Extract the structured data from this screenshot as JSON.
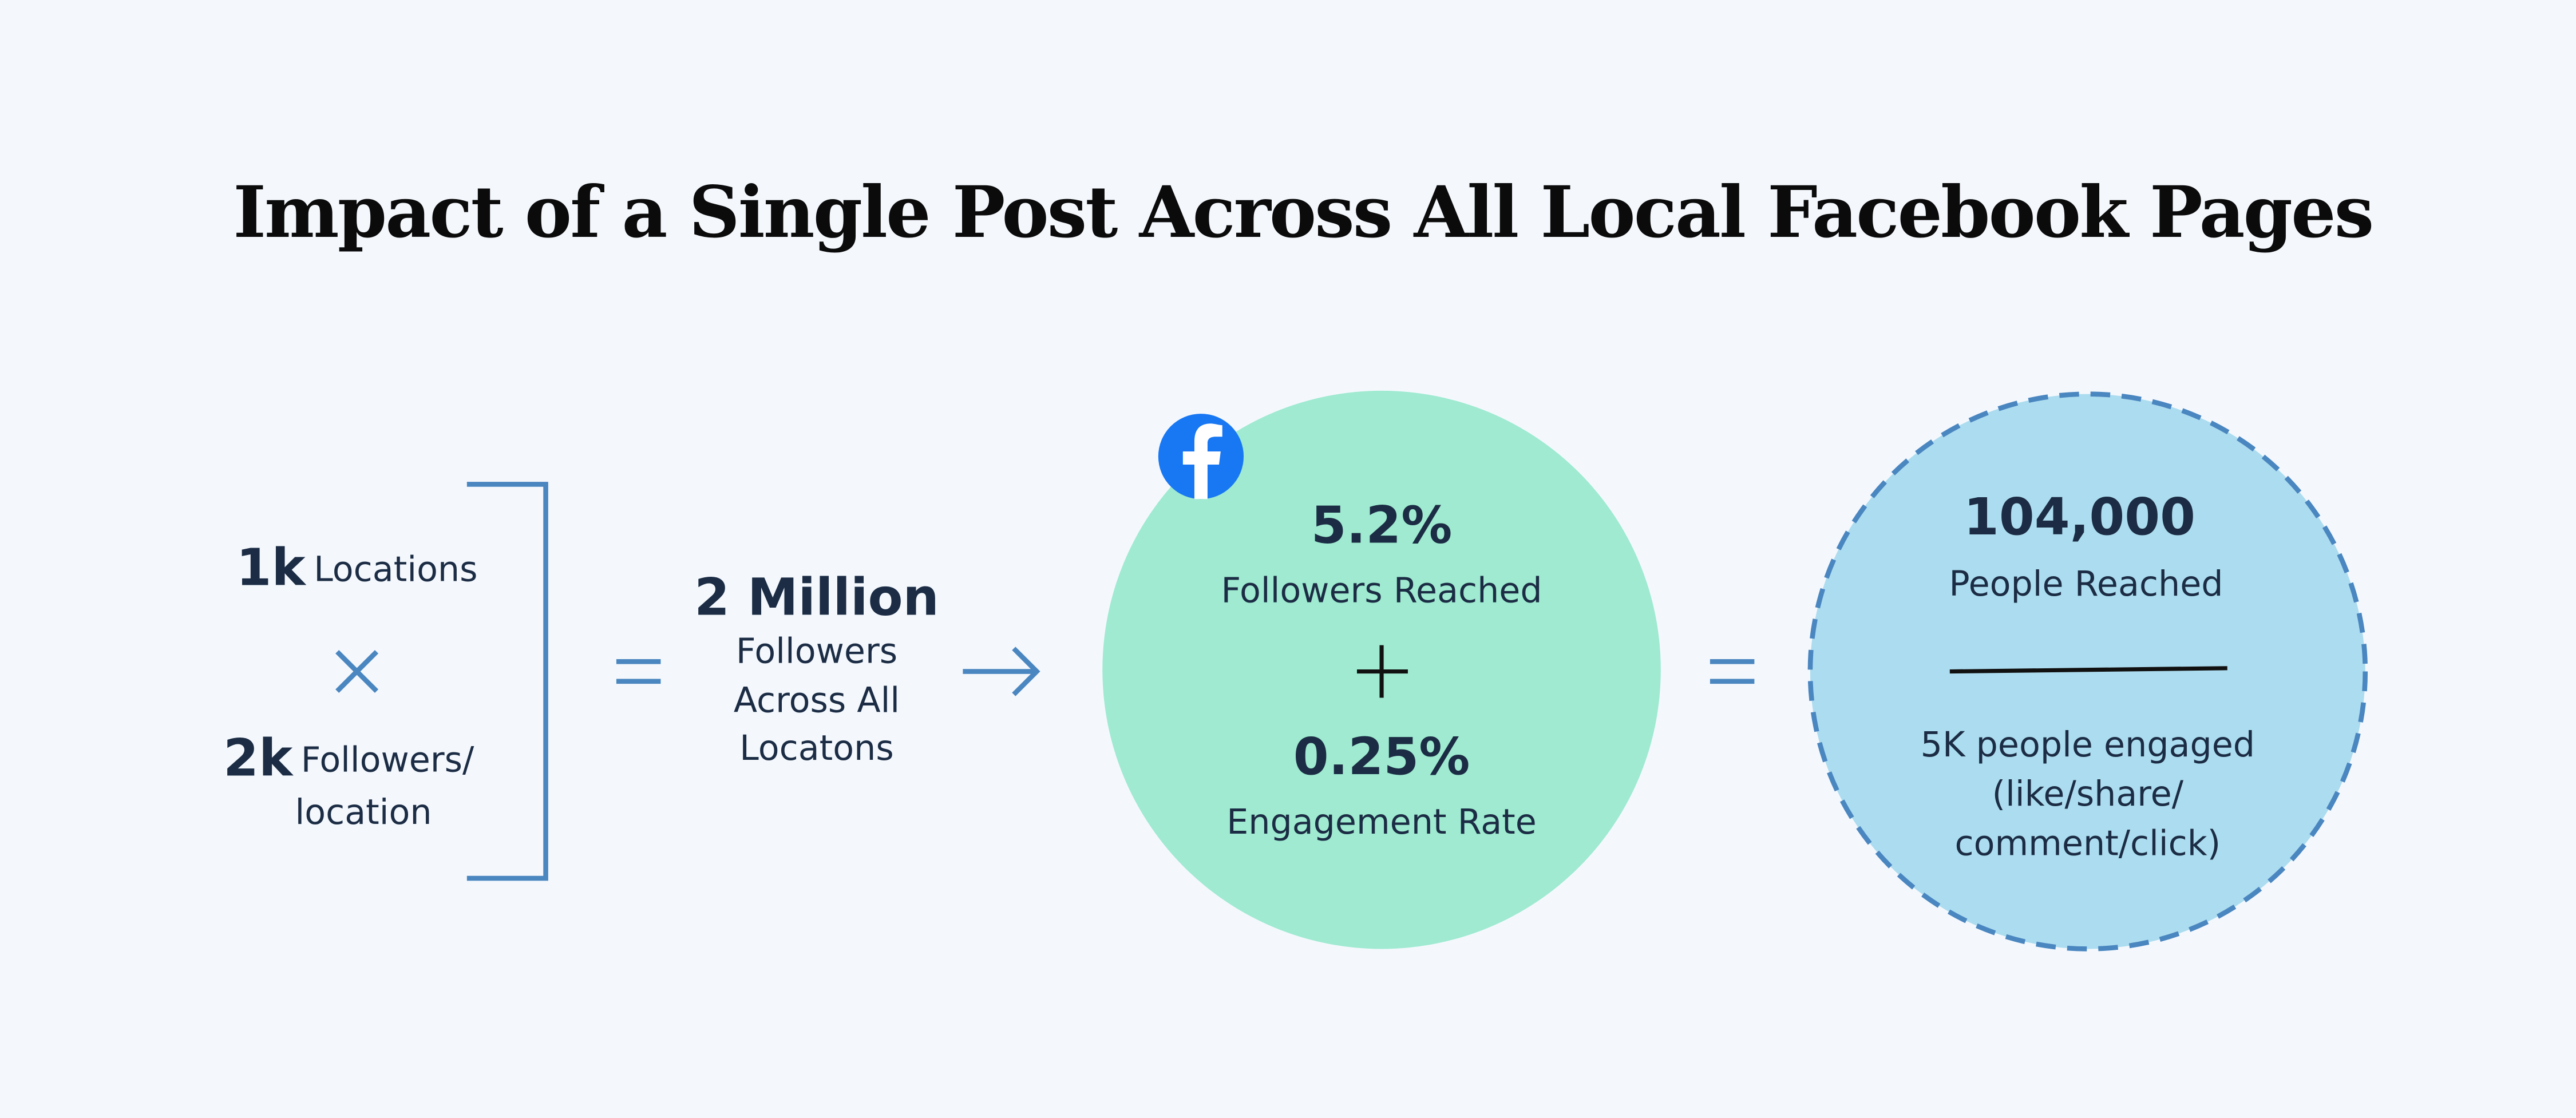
{
  "title": "Impact of a Single Post Across All Local Facebook Pages",
  "inputs": {
    "locations": {
      "value": "1k",
      "label": "Locations"
    },
    "followers_per_location": {
      "value": "2k",
      "label": [
        "Followers/",
        "location"
      ]
    }
  },
  "total_followers": {
    "value": "2 Million",
    "label": [
      "Followers",
      "Across All",
      "Locatons"
    ]
  },
  "rates": {
    "reach": {
      "value": "5.2%",
      "label": "Followers Reached"
    },
    "engagement": {
      "value": "0.25%",
      "label": "Engagement Rate"
    }
  },
  "result": {
    "reached": {
      "value": "104,000",
      "label": "People Reached"
    },
    "engaged": [
      "5K people engaged",
      "(like/share/",
      "comment/click)"
    ]
  }
}
